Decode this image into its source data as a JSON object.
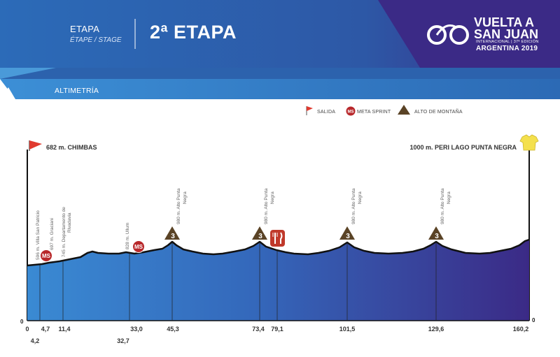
{
  "header": {
    "stage_label": "ETAPA",
    "stage_label_sub": "ÉTAPE / STAGE",
    "stage_title": "2ª ETAPA",
    "section_label": "ALTIMETRÍA",
    "brand_line1": "VUELTA A",
    "brand_line2": "SAN JUAN",
    "brand_line3": "INTERNACIONAL | 37ª EDICIÓN",
    "brand_line4": "ARGENTINA 2019"
  },
  "legend": {
    "start": "SALIDA",
    "sprint": "META SPRINT",
    "climb": "ALTO DE MONTAÑA"
  },
  "route": {
    "start_label": "682 m. CHIMBAS",
    "finish_label": "1000 m. PERI LAGO PUNTA NEGRA",
    "y_zero_left": "0",
    "y_zero_right": "0",
    "km_markers": [
      {
        "km": "0",
        "low": false
      },
      {
        "km": "4,2",
        "low": true
      },
      {
        "km": "4,7",
        "low": false
      },
      {
        "km": "11,4",
        "low": false
      },
      {
        "km": "32,7",
        "low": true
      },
      {
        "km": "33,0",
        "low": false
      },
      {
        "km": "45,3",
        "low": false
      },
      {
        "km": "73,4",
        "low": false
      },
      {
        "km": "79,1",
        "low": false
      },
      {
        "km": "101,5",
        "low": false
      },
      {
        "km": "129,6",
        "low": false
      },
      {
        "km": "160,2",
        "low": false
      }
    ],
    "waypoints": [
      {
        "text": "596 m. Villa San Patricio"
      },
      {
        "text": "697 m. Graciani"
      },
      {
        "text": "745 m. Departamento de",
        "text2": "Rivadavia"
      },
      {
        "text": "828 m. Ullum"
      },
      {
        "text": "980 m. Alto Punta",
        "text2": "Negra"
      },
      {
        "text": "980 m. Alto Punta",
        "text2": "Negra"
      },
      {
        "text": "980 m. Alto Punta",
        "text2": "Negra"
      },
      {
        "text": "980 m. Alto Punta",
        "text2": "Negra"
      }
    ],
    "sprint_badge": "MS",
    "climb_category": "3"
  },
  "colors": {
    "header_blue": "#2a64b0",
    "header_purple": "#3b2a86",
    "profile_left": "#3a8ad3",
    "profile_right": "#3b2a86",
    "sprint_red": "#b8282b",
    "climb_brown": "#5a4326",
    "feed_red": "#c0392b",
    "jersey_yellow": "#f4e04d"
  }
}
